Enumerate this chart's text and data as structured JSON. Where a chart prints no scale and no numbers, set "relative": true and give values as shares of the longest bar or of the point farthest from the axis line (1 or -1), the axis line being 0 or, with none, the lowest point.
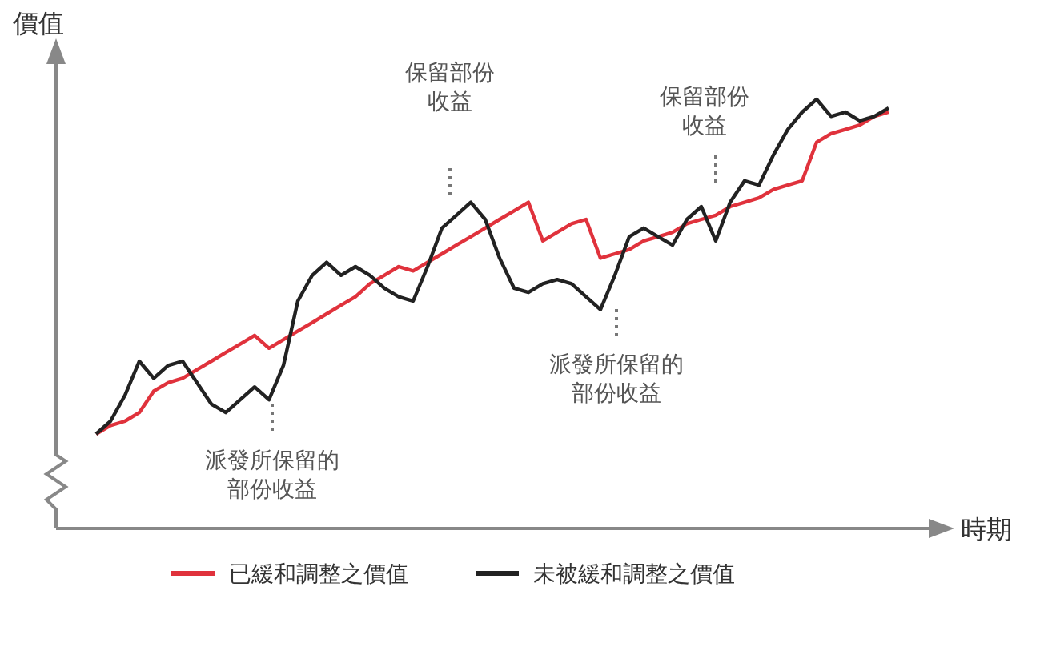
{
  "chart_data": {
    "type": "line",
    "relative": true,
    "ylabel": "價值",
    "xlabel": "時期",
    "legend": "bottom",
    "marker": "none",
    "line_style": "solid",
    "categories": [
      null,
      null,
      null,
      null,
      null,
      null,
      null,
      null,
      null,
      null,
      null,
      null,
      null,
      null,
      null,
      null,
      null,
      null,
      null,
      null,
      null,
      null,
      null,
      null,
      null,
      null,
      null,
      null,
      null,
      null,
      null,
      null,
      null,
      null,
      null,
      null,
      null,
      null,
      null,
      null,
      null,
      null,
      null,
      null,
      null,
      null,
      null,
      null,
      null,
      null,
      null,
      null,
      null,
      null,
      null,
      null
    ],
    "series": [
      {
        "name": "已緩和調整之價值",
        "color": "#e0323c",
        "values": [
          0.22,
          0.24,
          0.25,
          0.27,
          0.32,
          0.34,
          0.35,
          0.37,
          0.39,
          0.41,
          0.43,
          0.45,
          0.42,
          0.44,
          0.46,
          0.48,
          0.5,
          0.52,
          0.54,
          0.57,
          0.59,
          0.61,
          0.6,
          0.62,
          0.64,
          0.66,
          0.68,
          0.7,
          0.72,
          0.74,
          0.76,
          0.67,
          0.69,
          0.71,
          0.72,
          0.63,
          0.64,
          0.65,
          0.67,
          0.68,
          0.69,
          0.71,
          0.72,
          0.73,
          0.75,
          0.76,
          0.77,
          0.79,
          0.8,
          0.81,
          0.9,
          0.92,
          0.93,
          0.94,
          0.96,
          0.97
        ]
      },
      {
        "name": "未被緩和調整之價值",
        "color": "#222222",
        "values": [
          0.22,
          0.25,
          0.31,
          0.39,
          0.35,
          0.38,
          0.39,
          0.34,
          0.29,
          0.27,
          0.3,
          0.33,
          0.3,
          0.38,
          0.53,
          0.59,
          0.62,
          0.59,
          0.61,
          0.59,
          0.56,
          0.54,
          0.53,
          0.61,
          0.7,
          0.73,
          0.76,
          0.72,
          0.63,
          0.56,
          0.55,
          0.57,
          0.58,
          0.57,
          0.54,
          0.51,
          0.59,
          0.68,
          0.7,
          0.68,
          0.66,
          0.72,
          0.75,
          0.67,
          0.76,
          0.81,
          0.8,
          0.87,
          0.93,
          0.97,
          1,
          0.96,
          0.97,
          0.95,
          0.96,
          0.98
        ]
      }
    ],
    "annotations": [
      "派發所保留的部份收益",
      "保留部份收益",
      "派發所保留的部份收益",
      "保留部份收益"
    ]
  }
}
